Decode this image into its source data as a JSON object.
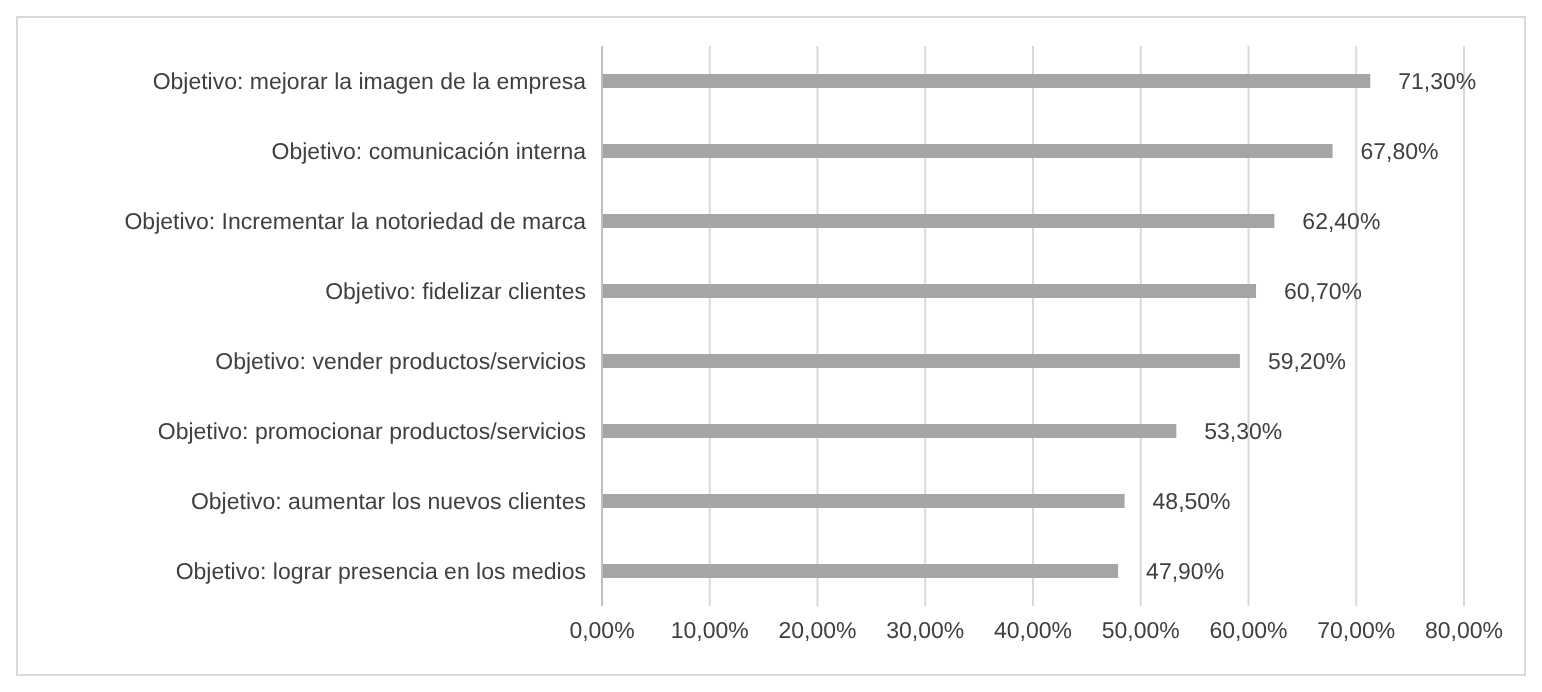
{
  "chart_data": {
    "type": "bar",
    "orientation": "horizontal",
    "categories": [
      "Objetivo: mejorar la imagen de la empresa",
      "Objetivo: comunicación interna",
      "Objetivo: Incrementar la notoriedad de marca",
      "Objetivo: fidelizar clientes",
      "Objetivo: vender productos/servicios",
      "Objetivo: promocionar productos/servicios",
      "Objetivo: aumentar los nuevos clientes",
      "Objetivo: lograr presencia en los medios"
    ],
    "values": [
      71.3,
      67.8,
      62.4,
      60.7,
      59.2,
      53.3,
      48.5,
      47.9
    ],
    "value_labels": [
      "71,30%",
      "67,80%",
      "62,40%",
      "60,70%",
      "59,20%",
      "53,30%",
      "48,50%",
      "47,90%"
    ],
    "color": "#a5a5a5",
    "xlim": [
      0,
      80
    ],
    "xticks": [
      {
        "value": 0,
        "label": "0,00%"
      },
      {
        "value": 10,
        "label": "10,00%"
      },
      {
        "value": 20,
        "label": "20,00%"
      },
      {
        "value": 30,
        "label": "30,00%"
      },
      {
        "value": 40,
        "label": "40,00%"
      },
      {
        "value": 50,
        "label": "50,00%"
      },
      {
        "value": 60,
        "label": "60,00%"
      },
      {
        "value": 70,
        "label": "70,00%"
      },
      {
        "value": 80,
        "label": "80,00%"
      }
    ],
    "grid": "x"
  }
}
